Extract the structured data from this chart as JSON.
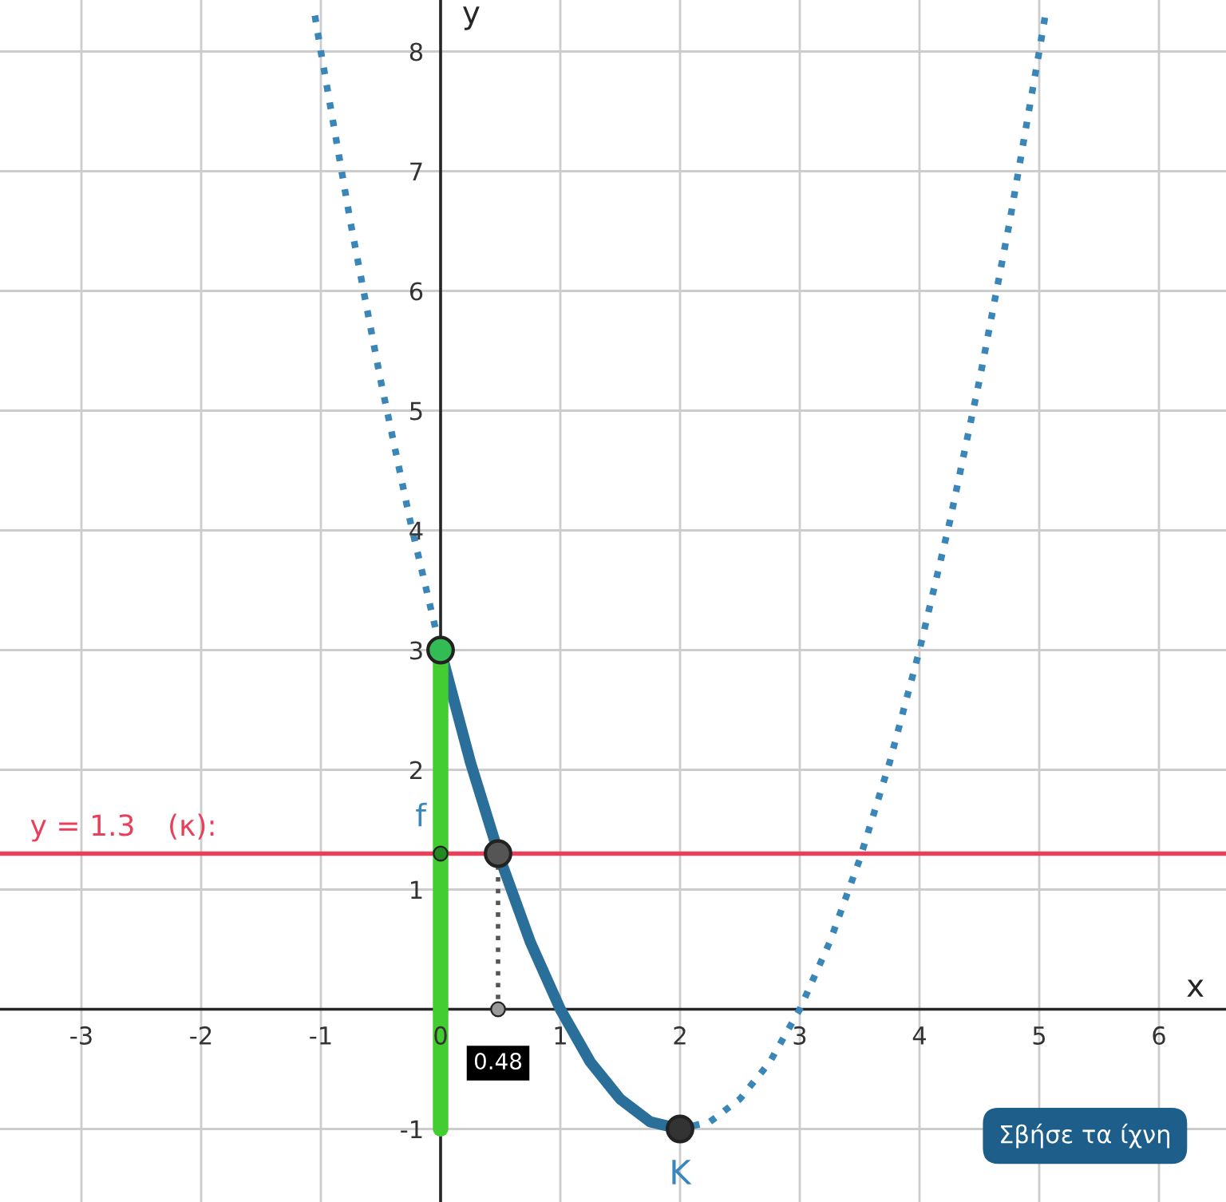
{
  "chart_data": {
    "type": "line",
    "xlabel": "x",
    "ylabel": "y",
    "xlim": [
      -3.68,
      6.56
    ],
    "ylim": [
      -1.61,
      8.43
    ],
    "xticks": [
      -3,
      -2,
      -1,
      0,
      1,
      2,
      3,
      4,
      5,
      6
    ],
    "yticks": [
      -1,
      1,
      2,
      3,
      4,
      5,
      6,
      7,
      8
    ],
    "grid": true,
    "series": [
      {
        "type": "line",
        "color": "#3a86b8",
        "line_style": "dotted",
        "x": [
          -1.05,
          -1,
          -0.75,
          -0.5,
          -0.25,
          0,
          0.25,
          0.5,
          0.75,
          1,
          1.25,
          1.5,
          1.75,
          2,
          2.25,
          2.5,
          2.75,
          3,
          3.25,
          3.5,
          3.75,
          4,
          4.25,
          4.5,
          4.75,
          5,
          5.05
        ],
        "values": [
          8.3,
          8,
          6.56,
          5.25,
          4.06,
          3,
          2.06,
          1.25,
          0.56,
          0,
          -0.44,
          -0.75,
          -0.94,
          -1,
          -0.94,
          -0.75,
          -0.44,
          0,
          0.56,
          1.25,
          2.06,
          3,
          4.06,
          5.25,
          6.56,
          8,
          8.3
        ]
      },
      {
        "type": "line",
        "color": "#2a6f99",
        "line_style": "solid",
        "x": [
          0,
          0.25,
          0.5,
          0.75,
          1,
          1.25,
          1.5,
          1.75,
          2
        ],
        "values": [
          3,
          2.06,
          1.25,
          0.56,
          0,
          -0.44,
          -0.75,
          -0.94,
          -1
        ]
      },
      {
        "type": "line",
        "color": "#44cc33",
        "line_style": "solid",
        "x": [
          0,
          0
        ],
        "values": [
          -1,
          3
        ]
      },
      {
        "type": "line",
        "color": "#555555",
        "line_style": "dotted",
        "x": [
          0.48,
          0.48
        ],
        "values": [
          1.3,
          0
        ]
      },
      {
        "type": "scatter",
        "marker": "circle",
        "x": [
          0,
          0.48,
          2
        ],
        "values": [
          3,
          1.3,
          -1
        ],
        "colors": [
          "#33bb55",
          "#555555",
          "#333333"
        ]
      },
      {
        "type": "scatter",
        "marker": "circle",
        "x": [
          0.48,
          0
        ],
        "values": [
          0,
          1.3
        ],
        "colors": [
          "#999999",
          "#228822"
        ]
      }
    ],
    "ref_lines": [
      {
        "axis": "y",
        "value": 1.3,
        "label": "y = 1.3",
        "color": "#e8405a"
      }
    ],
    "annotations": [
      "(κ):",
      "Σβήσε τα ίχνη",
      {
        "text": "0.48",
        "x": 0.48,
        "y": 0
      },
      {
        "text": "K",
        "x": 2,
        "y": -1
      },
      {
        "text": "f",
        "x": 0,
        "y": 1.9
      }
    ]
  }
}
